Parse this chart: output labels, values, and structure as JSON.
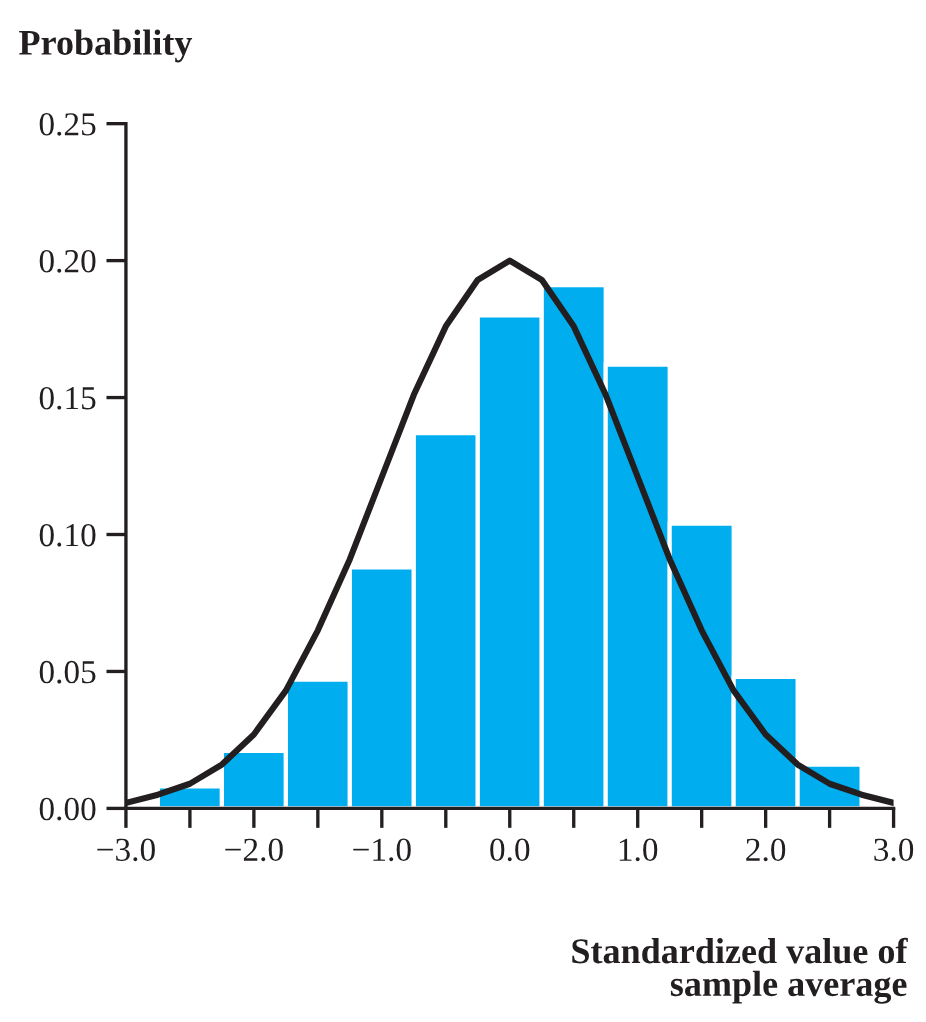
{
  "chart_data": {
    "type": "histogram",
    "ylabel": "Probability",
    "xlabel": "Standardized value of\nsample average",
    "bins": [
      -2.75,
      -2.25,
      -1.75,
      -1.25,
      -0.75,
      -0.25,
      0.25,
      0.75,
      1.25,
      1.75,
      2.25,
      2.75
    ],
    "values": [
      0.008,
      0.021,
      0.047,
      0.088,
      0.137,
      0.18,
      0.191,
      0.162,
      0.104,
      0.048,
      0.016
    ],
    "color": "#00aeef",
    "series": [
      {
        "type": "line",
        "color": "#231f20",
        "x": [
          -3,
          -2.75,
          -2.5,
          -2.25,
          -2,
          -1.75,
          -1.5,
          -1.25,
          -1,
          -0.75,
          -0.5,
          -0.25,
          0,
          0.25,
          0.5,
          0.75,
          1,
          1.25,
          1.5,
          1.75,
          2,
          2.25,
          2.5,
          2.75,
          3
        ],
        "values": [
          0.002,
          0.005,
          0.009,
          0.016,
          0.027,
          0.043,
          0.065,
          0.091,
          0.121,
          0.151,
          0.176,
          0.193,
          0.2,
          0.193,
          0.176,
          0.151,
          0.121,
          0.091,
          0.065,
          0.043,
          0.027,
          0.016,
          0.009,
          0.005,
          0.002
        ]
      }
    ],
    "xlim": [
      -3,
      3
    ],
    "ylim": [
      0,
      0.25
    ],
    "xticks": [
      {
        "value": -3,
        "label": "−3.0"
      },
      {
        "value": -2.5,
        "label": null
      },
      {
        "value": -2,
        "label": "−2.0"
      },
      {
        "value": -1.5,
        "label": null
      },
      {
        "value": -1,
        "label": "−1.0"
      },
      {
        "value": -0.5,
        "label": null
      },
      {
        "value": 0,
        "label": "0.0"
      },
      {
        "value": 0.5,
        "label": null
      },
      {
        "value": 1,
        "label": "1.0"
      },
      {
        "value": 1.5,
        "label": null
      },
      {
        "value": 2,
        "label": "2.0"
      },
      {
        "value": 2.5,
        "label": null
      },
      {
        "value": 3,
        "label": "3.0"
      }
    ],
    "yticks": [
      {
        "value": 0,
        "label": "0.00"
      },
      {
        "value": 0.05,
        "label": "0.05"
      },
      {
        "value": 0.1,
        "label": "0.10"
      },
      {
        "value": 0.15,
        "label": "0.15"
      },
      {
        "value": 0.2,
        "label": "0.20"
      },
      {
        "value": 0.25,
        "label": "0.25"
      }
    ],
    "grid": false,
    "legend": false
  }
}
